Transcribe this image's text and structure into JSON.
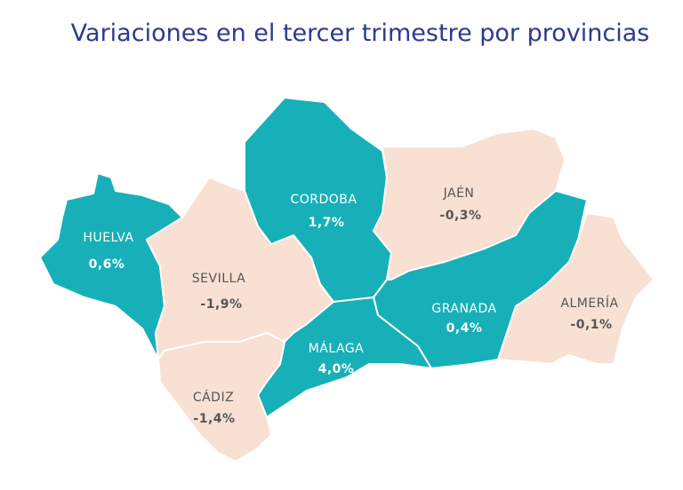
{
  "title": "Variaciones en el tercer trimestre por provincias",
  "colors": {
    "positive": "#17b0b8",
    "negative": "#f8e0d2"
  },
  "text_colors": {
    "positive": "#ffffff",
    "negative": "#555555"
  },
  "regions": [
    {
      "name": "HUELVA",
      "value": 0.6,
      "value_label": "0,6%"
    },
    {
      "name": "SEVILLA",
      "value": -1.9,
      "value_label": "-1,9%"
    },
    {
      "name": "CORDOBA",
      "value": 1.7,
      "value_label": "1,7%"
    },
    {
      "name": "JAÉN",
      "value": -0.3,
      "value_label": "-0,3%"
    },
    {
      "name": "GRANADA",
      "value": 0.4,
      "value_label": "0,4%"
    },
    {
      "name": "ALMERÍA",
      "value": -0.1,
      "value_label": "-0,1%"
    },
    {
      "name": "MÁLAGA",
      "value": 4.0,
      "value_label": "4,0%"
    },
    {
      "name": "CÁDIZ",
      "value": -1.4,
      "value_label": "-1,4%"
    }
  ]
}
